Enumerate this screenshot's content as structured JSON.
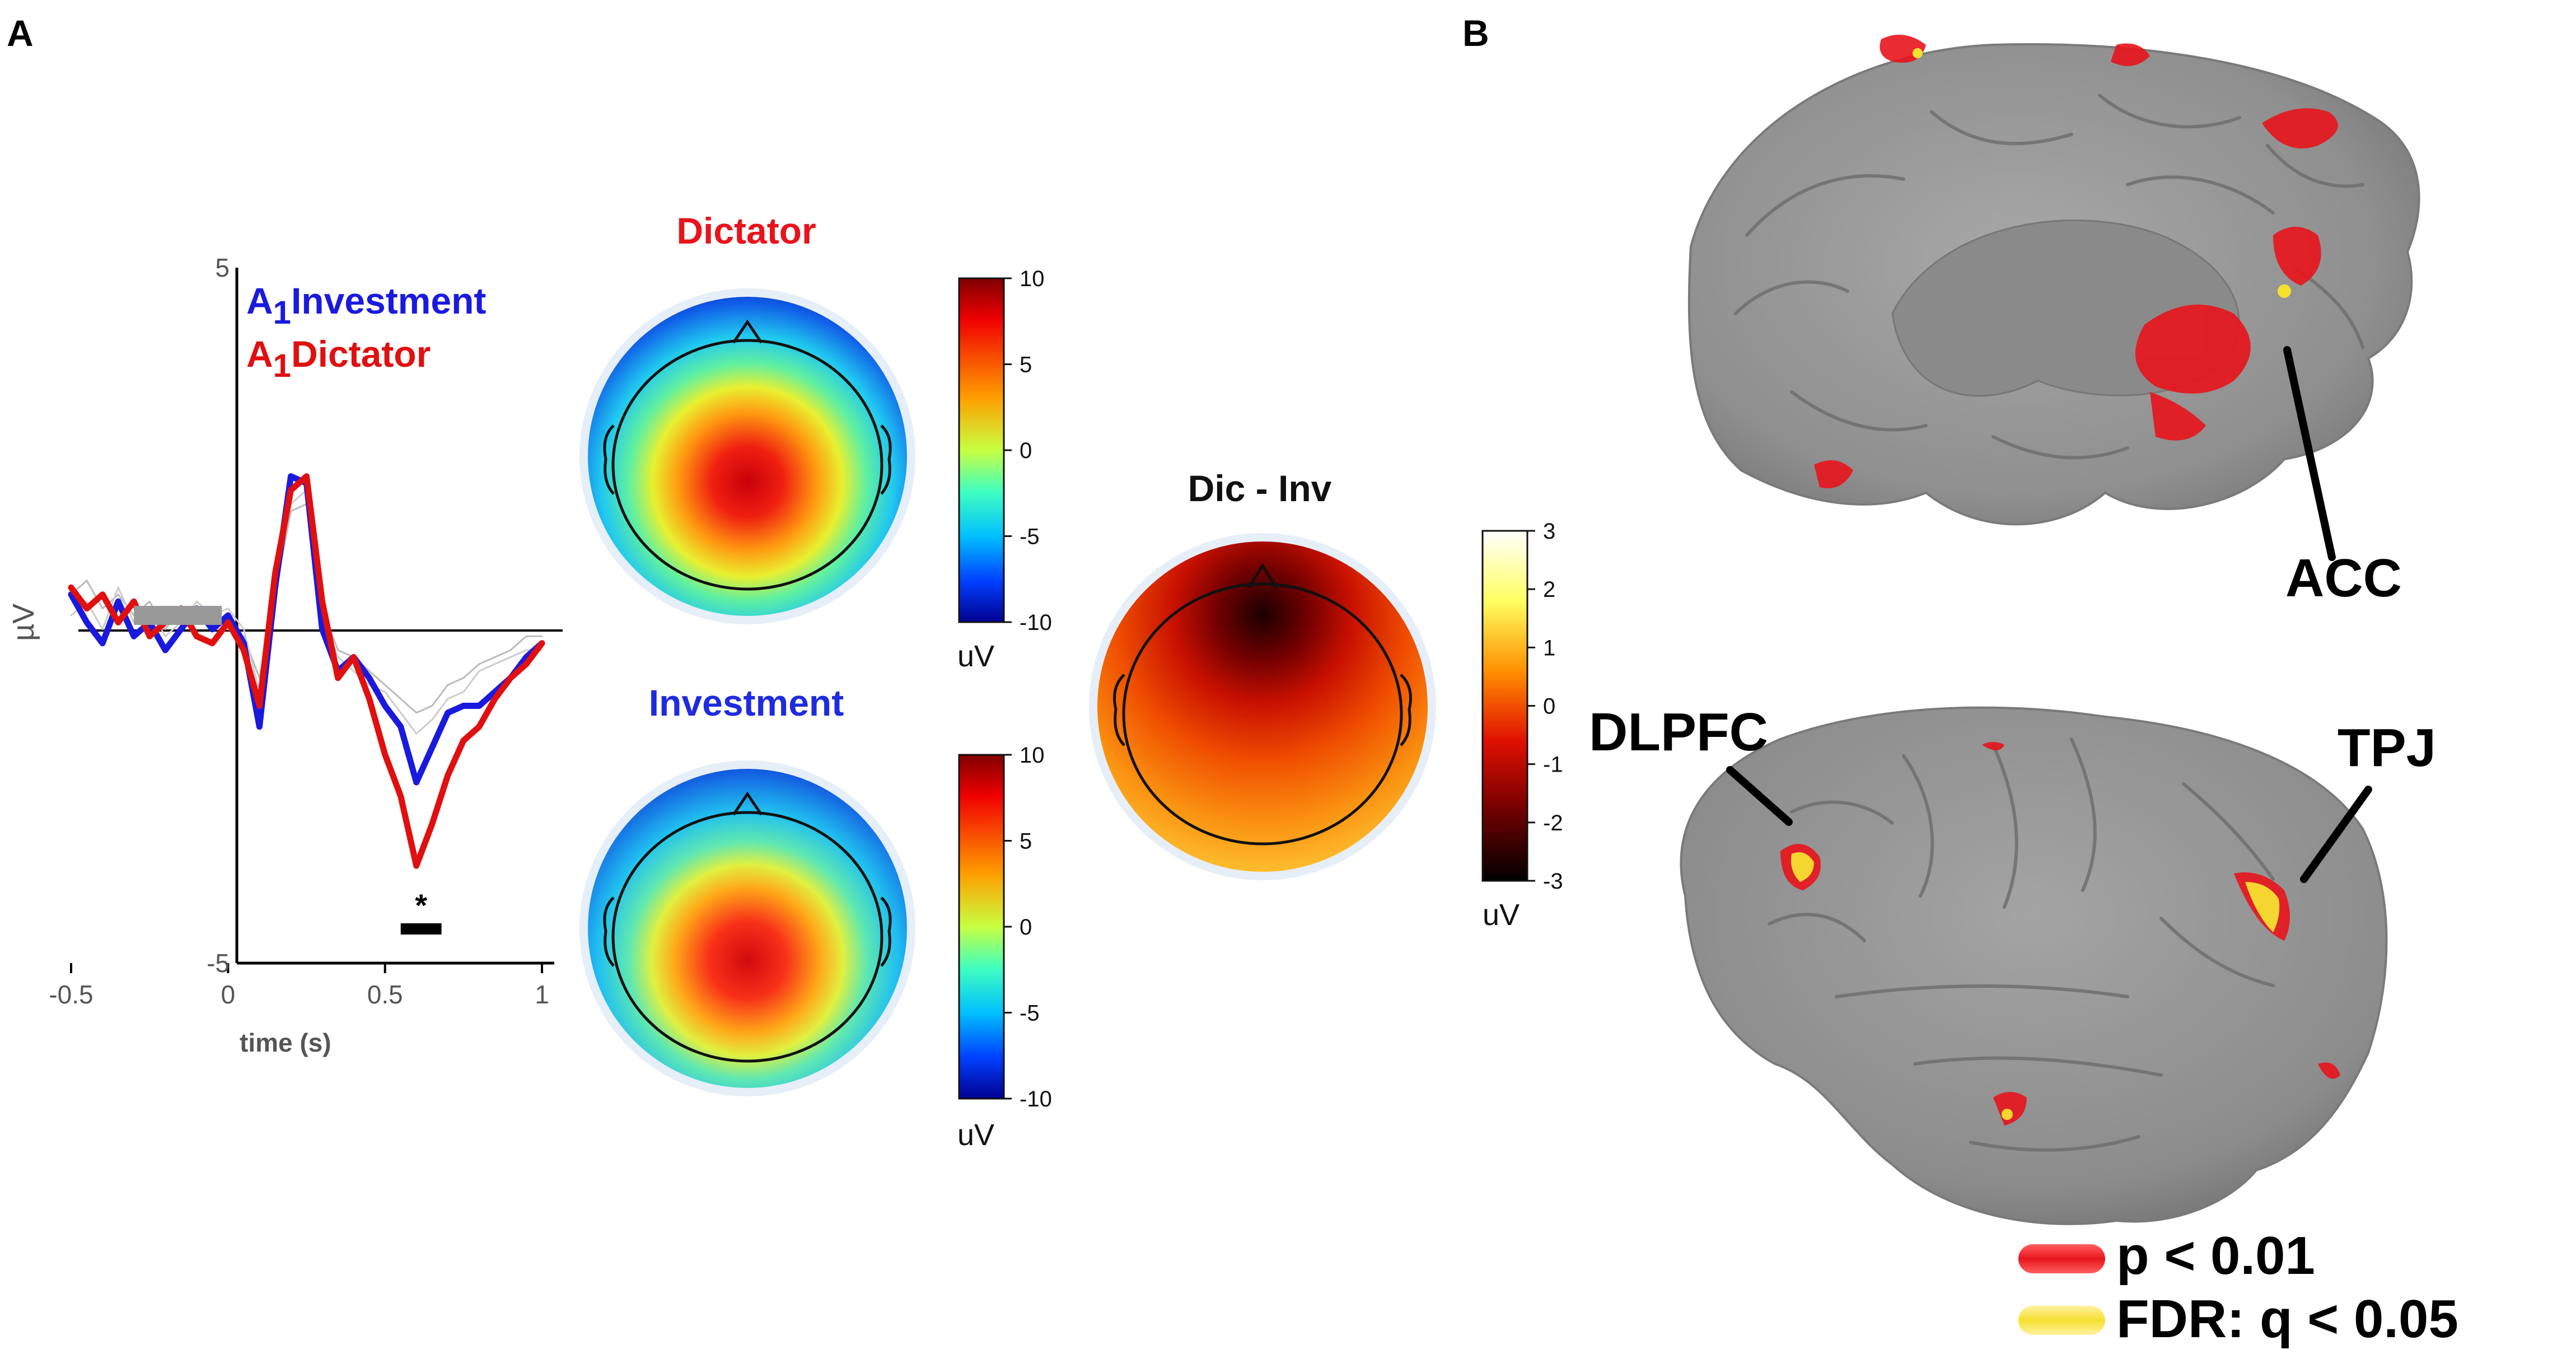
{
  "panels": {
    "a": {
      "label": "A"
    },
    "b": {
      "label": "B"
    }
  },
  "erp": {
    "legend": [
      {
        "prefix": "A",
        "sub": "1",
        "name": "Investment",
        "color": "#1a1adf"
      },
      {
        "prefix": "A",
        "sub": "1",
        "name": "Dictator",
        "color": "#e01010"
      }
    ],
    "ylabel": "µV",
    "xlabel": "time (s)",
    "significance_mark": "*"
  },
  "chart_data": {
    "type": "line",
    "title": "",
    "xlabel": "time (s)",
    "ylabel": "µV",
    "xlim": [
      -0.5,
      1
    ],
    "ylim": [
      -5,
      5
    ],
    "x_ticks": [
      "-0.5",
      "0",
      "0.5",
      "1"
    ],
    "x_tick_values": [
      -0.5,
      0,
      0.5,
      1
    ],
    "y_ticks": [
      "5",
      "-5"
    ],
    "y_tick_values": [
      5,
      -5
    ],
    "x": [
      -0.5,
      -0.45,
      -0.4,
      -0.35,
      -0.3,
      -0.25,
      -0.2,
      -0.15,
      -0.1,
      -0.05,
      0,
      0.05,
      0.1,
      0.15,
      0.2,
      0.25,
      0.3,
      0.35,
      0.4,
      0.45,
      0.5,
      0.55,
      0.6,
      0.65,
      0.7,
      0.75,
      0.8,
      0.85,
      0.9,
      0.95,
      1
    ],
    "series": [
      {
        "name": "A1Investment",
        "color": "#1a1adf",
        "values": [
          0.3,
          -0.1,
          -0.4,
          0.2,
          -0.3,
          -0.1,
          -0.5,
          -0.2,
          0.1,
          -0.2,
          0,
          -0.4,
          -1.6,
          0.4,
          2.0,
          1.9,
          -0.2,
          -0.8,
          -0.6,
          -0.9,
          -1.3,
          -1.6,
          -2.4,
          -1.9,
          -1.4,
          -1.3,
          -1.3,
          -1.1,
          -0.9,
          -0.6,
          -0.4
        ]
      },
      {
        "name": "A1Dictator",
        "color": "#e01010",
        "values": [
          0.4,
          0.1,
          0.3,
          -0.1,
          0.2,
          -0.3,
          -0.1,
          0.1,
          -0.3,
          -0.4,
          -0.1,
          -0.5,
          -1.3,
          0.6,
          1.8,
          2.0,
          0.2,
          -0.9,
          -0.6,
          -1.2,
          -2.0,
          -2.6,
          -3.6,
          -3.0,
          -2.3,
          -1.8,
          -1.6,
          -1.2,
          -0.9,
          -0.7,
          -0.4
        ]
      },
      {
        "name": "",
        "color": "#bbbbbb",
        "values": [
          0.3,
          0.5,
          0.1,
          0.3,
          0.0,
          0.2,
          -0.2,
          0.1,
          0.0,
          -0.2,
          -0.2,
          -0.3,
          -0.9,
          0.3,
          1.5,
          1.6,
          0.1,
          -0.5,
          -0.6,
          -0.8,
          -1.0,
          -1.2,
          -1.4,
          -1.3,
          -1.0,
          -0.9,
          -0.7,
          -0.6,
          -0.5,
          -0.3,
          -0.3
        ]
      },
      {
        "name": "",
        "color": "#cccccc",
        "values": [
          0.0,
          0.2,
          -0.2,
          0.4,
          -0.1,
          0.1,
          -0.3,
          -0.1,
          0.2,
          0.0,
          0.1,
          -0.2,
          -1.1,
          0.5,
          1.6,
          1.8,
          0.0,
          -0.6,
          -0.8,
          -1.0,
          -1.1,
          -1.4,
          -1.7,
          -1.5,
          -1.2,
          -1.1,
          -0.8,
          -0.7,
          -0.6,
          -0.5,
          -0.5
        ]
      }
    ],
    "baseline_bar": {
      "from": -0.3,
      "to": -0.02,
      "color": "#999999"
    },
    "significance_bar": {
      "from": 0.55,
      "to": 0.68,
      "y": -4.5
    },
    "grid": false,
    "legend_position": "top-left"
  },
  "topomaps": [
    {
      "id": "dictator",
      "title": "Dictator",
      "title_color": "#e8141c",
      "colorbar": {
        "ticks": [
          "10",
          "5",
          "0",
          "-5",
          "-10"
        ],
        "unit": "uV"
      }
    },
    {
      "id": "investment",
      "title": "Investment",
      "title_color": "#1f2be0",
      "colorbar": {
        "ticks": [
          "10",
          "5",
          "0",
          "-5",
          "-10"
        ],
        "unit": "uV"
      }
    },
    {
      "id": "difference",
      "title": "Dic - Inv",
      "title_color": "#111111",
      "colorbar": {
        "ticks": [
          "3",
          "2",
          "1",
          "0",
          "-1",
          "-2",
          "-3"
        ],
        "unit": "uV"
      }
    }
  ],
  "brain": {
    "labels": {
      "acc": "ACC",
      "dlpfc": "DLPFC",
      "tpj": "TPJ"
    },
    "legend": [
      {
        "label": "p < 0.01",
        "color": "#e8141c"
      },
      {
        "label": "FDR: q < 0.05",
        "color": "#f5e030"
      }
    ]
  }
}
